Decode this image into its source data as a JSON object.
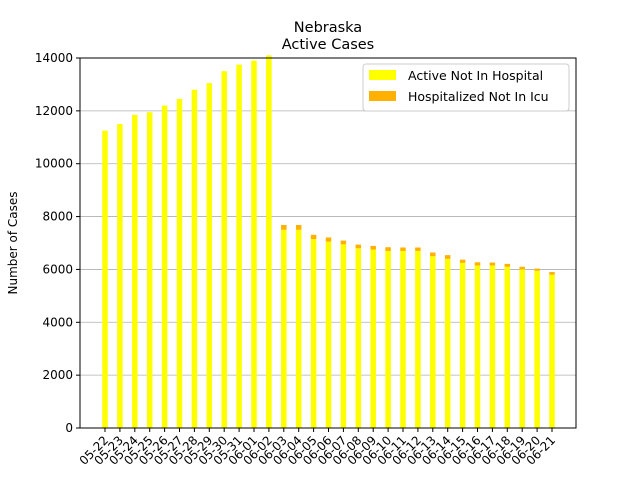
{
  "chart_data": {
    "type": "bar",
    "stacked": true,
    "title": "Nebraska",
    "subtitle": "Active Cases",
    "xlabel": "",
    "ylabel": "Number of Cases",
    "ylim": [
      0,
      14000
    ],
    "yticks": [
      0,
      2000,
      4000,
      6000,
      8000,
      10000,
      12000,
      14000
    ],
    "grid": "y",
    "legend": "top-right",
    "categories": [
      "05-22",
      "05-23",
      "05-24",
      "05-25",
      "05-26",
      "05-27",
      "05-28",
      "05-29",
      "05-30",
      "05-31",
      "06-01",
      "06-02",
      "06-03",
      "06-04",
      "06-05",
      "06-06",
      "06-07",
      "06-08",
      "06-09",
      "06-10",
      "06-11",
      "06-12",
      "06-13",
      "06-14",
      "06-15",
      "06-16",
      "06-17",
      "06-18",
      "06-19",
      "06-20",
      "06-21"
    ],
    "series": [
      {
        "name": "Active Not In Hospital",
        "color": "#ffff00",
        "values": [
          11250,
          11500,
          11850,
          11950,
          12200,
          12450,
          12800,
          13050,
          13500,
          13750,
          13900,
          14100,
          7500,
          7500,
          7150,
          7050,
          6950,
          6800,
          6750,
          6700,
          6700,
          6700,
          6500,
          6400,
          6250,
          6150,
          6150,
          6100,
          6000,
          5950,
          5800
        ]
      },
      {
        "name": "Hospitalized Not In Icu",
        "color": "#ffb000",
        "values": [
          0,
          0,
          0,
          0,
          0,
          0,
          0,
          0,
          0,
          0,
          0,
          0,
          180,
          180,
          160,
          160,
          140,
          140,
          140,
          140,
          130,
          130,
          140,
          140,
          120,
          120,
          110,
          110,
          100,
          80,
          100
        ]
      }
    ]
  }
}
